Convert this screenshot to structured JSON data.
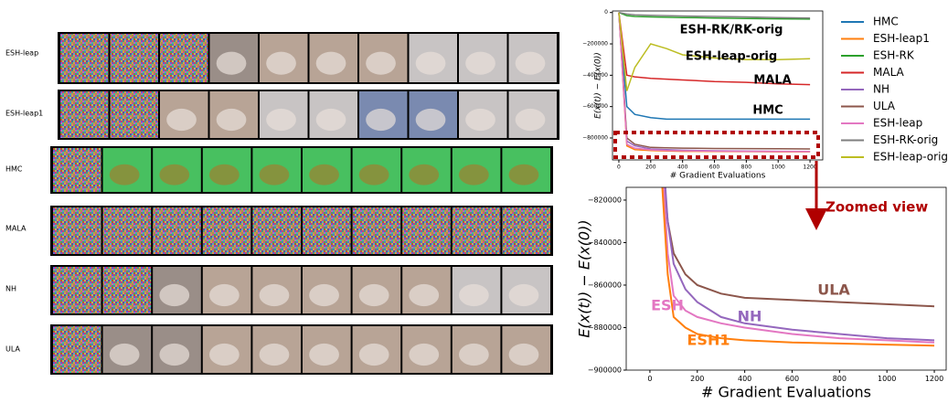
{
  "image_grid": {
    "rows": [
      "ESH-leap",
      "ESH-leap1",
      "HMC",
      "MALA",
      "NH",
      "ULA"
    ]
  },
  "callout": "Zoomed view",
  "chart_data": [
    {
      "type": "line",
      "xlabel": "# Gradient Evaluations",
      "ylabel": "E(x(t)) − E(x(0))",
      "x": [
        0,
        50,
        100,
        200,
        300,
        400,
        600,
        800,
        1000,
        1200
      ],
      "xlim": [
        -40,
        1280
      ],
      "xticks": [
        0,
        200,
        400,
        600,
        800,
        1000,
        1200
      ],
      "ylim": [
        -940000,
        10000
      ],
      "yticks": [
        0,
        {
          "value": -200000,
          "label": "−200000"
        },
        {
          "value": -400000,
          "label": "−400000"
        },
        {
          "value": -600000,
          "label": "−600000"
        },
        {
          "value": -800000,
          "label": "−800000"
        }
      ],
      "legend": "outside right",
      "series": [
        {
          "name": "HMC",
          "color": "#1f77b4",
          "values": [
            0,
            -600000,
            -650000,
            -670000,
            -680000,
            -680000,
            -680000,
            -680000,
            -680000,
            -680000
          ]
        },
        {
          "name": "ESH-leap1",
          "color": "#ff7f0e",
          "values": [
            0,
            -850000,
            -875000,
            -880000,
            -883000,
            -885000,
            -886000,
            -887000,
            -888000,
            -888000
          ]
        },
        {
          "name": "ESH-RK",
          "color": "#2ca02c",
          "values": [
            0,
            -20000,
            -25000,
            -28000,
            -30000,
            -32000,
            -35000,
            -38000,
            -40000,
            -42000
          ]
        },
        {
          "name": "MALA",
          "color": "#d62728",
          "values": [
            0,
            -400000,
            -410000,
            -420000,
            -425000,
            -430000,
            -440000,
            -445000,
            -455000,
            -460000
          ]
        },
        {
          "name": "NH",
          "color": "#9467bd",
          "values": [
            0,
            -820000,
            -850000,
            -870000,
            -875000,
            -878000,
            -882000,
            -884000,
            -885000,
            -886000
          ]
        },
        {
          "name": "ULA",
          "color": "#8c564b",
          "values": [
            0,
            -800000,
            -840000,
            -860000,
            -863000,
            -865000,
            -867000,
            -868000,
            -869000,
            -870000
          ]
        },
        {
          "name": "ESH-leap",
          "color": "#e377c2",
          "values": [
            0,
            -840000,
            -865000,
            -876000,
            -880000,
            -882000,
            -884000,
            -885000,
            -886000,
            -887000
          ]
        },
        {
          "name": "ESH-RK-orig",
          "color": "#7f7f7f",
          "values": [
            0,
            -10000,
            -15000,
            -18000,
            -20000,
            -22000,
            -25000,
            -28000,
            -32000,
            -35000
          ]
        },
        {
          "name": "ESH-leap-orig",
          "color": "#bcbd22",
          "values": [
            0,
            -500000,
            -350000,
            -200000,
            -230000,
            -270000,
            -290000,
            -300000,
            -300000,
            -295000
          ]
        }
      ],
      "annotations": [
        {
          "text": "ESH-RK/RK-orig",
          "color": "#000000"
        },
        {
          "text": "ESH-leap-orig",
          "color": "#000000"
        },
        {
          "text": "MALA",
          "color": "#000000"
        },
        {
          "text": "HMC",
          "color": "#000000"
        }
      ]
    },
    {
      "type": "line",
      "xlabel": "# Gradient Evaluations",
      "ylabel": "E(x(t)) − E(x(0))",
      "x": [
        50,
        75,
        100,
        150,
        200,
        300,
        400,
        600,
        800,
        1000,
        1200
      ],
      "xlim": [
        -100,
        1250
      ],
      "xticks": [
        0,
        200,
        400,
        600,
        800,
        1000,
        1200
      ],
      "ylim": [
        -900000,
        -814000
      ],
      "yticks": [
        {
          "value": -820000,
          "label": "−820000"
        },
        {
          "value": -840000,
          "label": "−840000"
        },
        {
          "value": -860000,
          "label": "−860000"
        },
        {
          "value": -880000,
          "label": "−880000"
        },
        {
          "value": -900000,
          "label": "−900000"
        }
      ],
      "series": [
        {
          "color": "#8c564b",
          "values": [
            -800000,
            -830000,
            -845000,
            -855000,
            -860000,
            -864000,
            -866000,
            -867000,
            -868000,
            -869000,
            -870000
          ]
        },
        {
          "color": "#9467bd",
          "values": [
            -790000,
            -830000,
            -850000,
            -862000,
            -868000,
            -875000,
            -878000,
            -881000,
            -883000,
            -885000,
            -886000
          ]
        },
        {
          "color": "#e377c2",
          "values": [
            -800000,
            -845000,
            -865000,
            -872000,
            -875000,
            -878000,
            -880000,
            -883000,
            -885000,
            -886000,
            -887000
          ]
        },
        {
          "color": "#ff7f0e",
          "values": [
            -810000,
            -855000,
            -875000,
            -880000,
            -883000,
            -885000,
            -886000,
            -887000,
            -887500,
            -888000,
            -888500
          ]
        }
      ],
      "annotations": [
        {
          "text": "ULA",
          "color": "#8c564b"
        },
        {
          "text": "NH",
          "color": "#9467bd"
        },
        {
          "text": "ESH",
          "color": "#e377c2"
        },
        {
          "text": "ESH1",
          "color": "#ff7f0e"
        }
      ]
    }
  ]
}
